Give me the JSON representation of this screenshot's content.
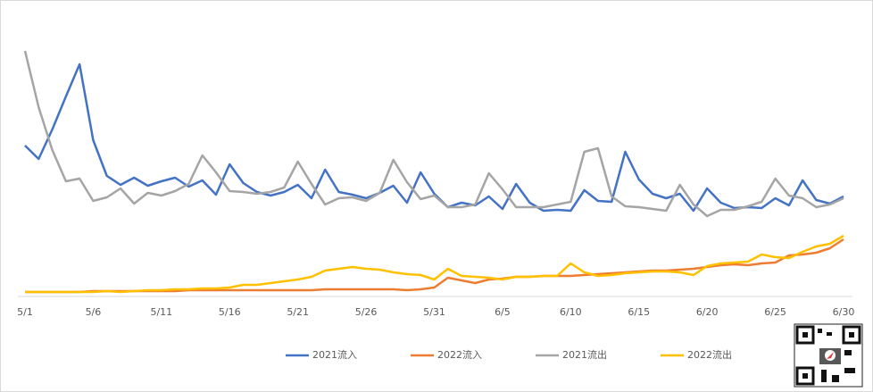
{
  "chart_data": {
    "type": "line",
    "categories": [
      "5/1",
      null,
      null,
      null,
      null,
      "5/6",
      null,
      null,
      null,
      null,
      "5/11",
      null,
      null,
      null,
      null,
      "5/16",
      null,
      null,
      null,
      null,
      "5/21",
      null,
      null,
      null,
      null,
      "5/26",
      null,
      null,
      null,
      null,
      "5/31",
      null,
      null,
      null,
      null,
      "6/5",
      null,
      null,
      null,
      null,
      "6/10",
      null,
      null,
      null,
      null,
      "6/15",
      null,
      null,
      null,
      null,
      "6/20",
      null,
      null,
      null,
      null,
      "6/25",
      null,
      null,
      null,
      null,
      "6/30"
    ],
    "ylim": [
      0,
      300
    ],
    "legend": "bottom",
    "series": [
      {
        "name": "2021流入",
        "color": "#4472c4",
        "values": [
          169,
          154,
          187,
          224,
          260,
          175,
          135,
          125,
          133,
          124,
          129,
          133,
          123,
          130,
          114,
          148,
          127,
          117,
          113,
          117,
          125,
          110,
          142,
          117,
          114,
          110,
          116,
          124,
          105,
          139,
          115,
          100,
          105,
          102,
          112,
          98,
          126,
          105,
          96,
          97,
          96,
          119,
          107,
          106,
          162,
          131,
          115,
          110,
          115,
          96,
          121,
          105,
          99,
          100,
          99,
          110,
          102,
          130,
          108,
          104,
          112
        ]
      },
      {
        "name": "2022流入",
        "color": "#ed7d31",
        "values": [
          5,
          5,
          5,
          5,
          5,
          6,
          6,
          6,
          6,
          6,
          6,
          6,
          7,
          7,
          7,
          7,
          7,
          7,
          7,
          7,
          7,
          7,
          8,
          8,
          8,
          8,
          8,
          8,
          7,
          8,
          10,
          21,
          18,
          15,
          19,
          20,
          22,
          22,
          23,
          23,
          23,
          24,
          25,
          26,
          27,
          28,
          29,
          29,
          30,
          31,
          33,
          35,
          36,
          35,
          37,
          38,
          46,
          47,
          49,
          54,
          64
        ]
      },
      {
        "name": "2021流出",
        "color": "#a5a5a5",
        "values": [
          275,
          212,
          164,
          129,
          132,
          107,
          111,
          121,
          104,
          116,
          113,
          118,
          126,
          158,
          139,
          118,
          117,
          115,
          117,
          122,
          151,
          126,
          103,
          110,
          111,
          107,
          116,
          153,
          128,
          109,
          113,
          100,
          100,
          103,
          138,
          120,
          100,
          100,
          100,
          103,
          106,
          162,
          166,
          112,
          101,
          100,
          98,
          96,
          125,
          103,
          90,
          97,
          97,
          101,
          106,
          132,
          113,
          110,
          100,
          103,
          110
        ]
      },
      {
        "name": "2022流出",
        "color": "#ffc000",
        "values": [
          5,
          5,
          5,
          5,
          5,
          5,
          6,
          5,
          6,
          7,
          7,
          8,
          8,
          9,
          9,
          10,
          13,
          13,
          15,
          17,
          19,
          22,
          29,
          31,
          33,
          31,
          30,
          27,
          25,
          24,
          19,
          31,
          23,
          22,
          21,
          19,
          22,
          22,
          23,
          23,
          37,
          27,
          23,
          24,
          26,
          27,
          28,
          28,
          27,
          24,
          34,
          37,
          38,
          39,
          47,
          44,
          43,
          50,
          56,
          59,
          68
        ]
      }
    ]
  }
}
